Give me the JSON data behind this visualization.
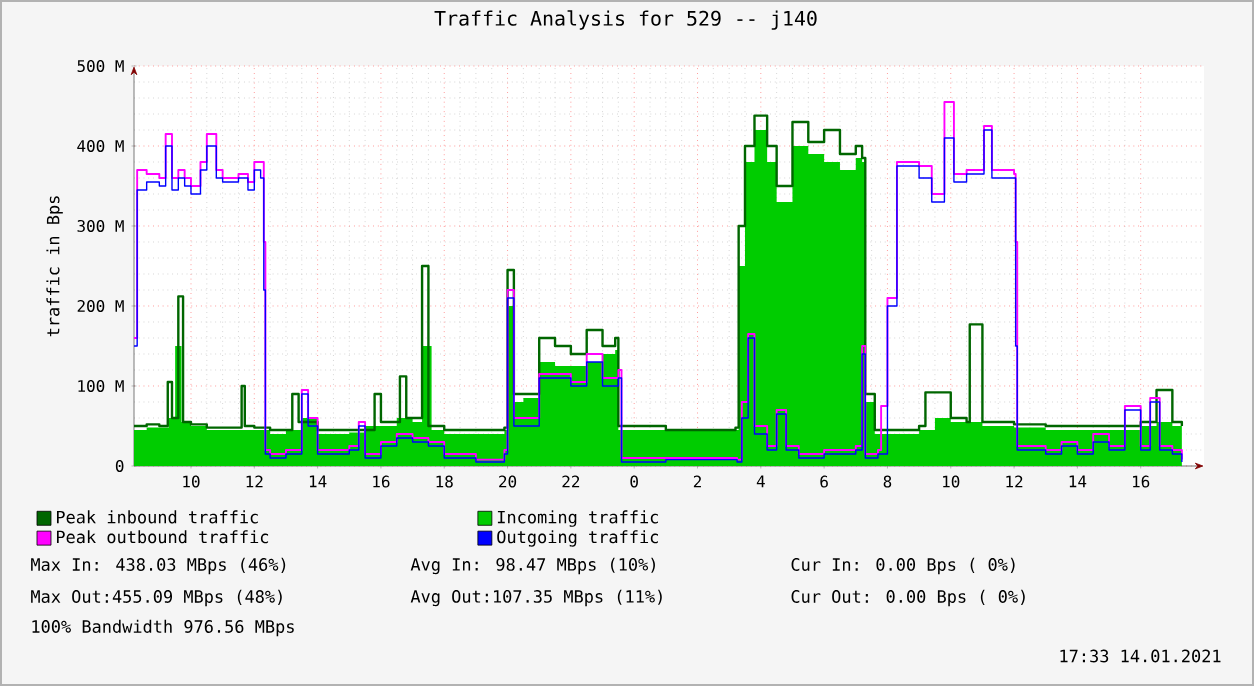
{
  "chart_data": {
    "type": "area",
    "title": "Traffic Analysis for 529 -- j140",
    "ylabel": "traffic in Bps",
    "xlim": [
      "2021-01-13T08:12",
      "2021-01-14T18:00"
    ],
    "ylim": [
      0,
      500
    ],
    "xticks": [
      {
        "value": "2021-01-13T10:00",
        "label": "10"
      },
      {
        "value": "2021-01-13T12:00",
        "label": "12"
      },
      {
        "value": "2021-01-13T14:00",
        "label": "14"
      },
      {
        "value": "2021-01-13T16:00",
        "label": "16"
      },
      {
        "value": "2021-01-13T18:00",
        "label": "18"
      },
      {
        "value": "2021-01-13T20:00",
        "label": "20"
      },
      {
        "value": "2021-01-13T22:00",
        "label": "22"
      },
      {
        "value": "2021-01-14T00:00",
        "label": "0"
      },
      {
        "value": "2021-01-14T02:00",
        "label": "2"
      },
      {
        "value": "2021-01-14T04:00",
        "label": "4"
      },
      {
        "value": "2021-01-14T06:00",
        "label": "6"
      },
      {
        "value": "2021-01-14T08:00",
        "label": "8"
      },
      {
        "value": "2021-01-14T10:00",
        "label": "10"
      },
      {
        "value": "2021-01-14T12:00",
        "label": "12"
      },
      {
        "value": "2021-01-14T14:00",
        "label": "14"
      },
      {
        "value": "2021-01-14T16:00",
        "label": "16"
      }
    ],
    "yticks": [
      0,
      {
        "value": 100,
        "label": "100 M"
      },
      {
        "value": 200,
        "label": "200 M"
      },
      {
        "value": 300,
        "label": "300 M"
      },
      {
        "value": 400,
        "label": "400 M"
      },
      {
        "value": 500,
        "label": "500 M"
      }
    ],
    "grid": true,
    "legend": "bottom",
    "series": [
      {
        "name": "Peak inbound traffic",
        "type": "step",
        "color": "#006600",
        "x": [
          "2021-01-13T08:12",
          "2021-01-13T08:36",
          "2021-01-13T09:00",
          "2021-01-13T09:16",
          "2021-01-13T09:24",
          "2021-01-13T09:36",
          "2021-01-13T09:45",
          "2021-01-13T10:00",
          "2021-01-13T10:30",
          "2021-01-13T11:00",
          "2021-01-13T11:36",
          "2021-01-13T11:42",
          "2021-01-13T12:00",
          "2021-01-13T12:30",
          "2021-01-13T13:12",
          "2021-01-13T13:24",
          "2021-01-13T14:00",
          "2021-01-13T15:00",
          "2021-01-13T15:48",
          "2021-01-13T16:00",
          "2021-01-13T16:36",
          "2021-01-13T16:48",
          "2021-01-13T17:12",
          "2021-01-13T17:18",
          "2021-01-13T17:30",
          "2021-01-13T18:00",
          "2021-01-13T19:00",
          "2021-01-13T19:54",
          "2021-01-13T20:00",
          "2021-01-13T20:12",
          "2021-01-13T21:00",
          "2021-01-13T21:30",
          "2021-01-13T22:00",
          "2021-01-13T22:30",
          "2021-01-13T23:00",
          "2021-01-13T23:24",
          "2021-01-13T23:30",
          "2021-01-14T00:00",
          "2021-01-14T01:00",
          "2021-01-14T02:00",
          "2021-01-14T03:12",
          "2021-01-14T03:18",
          "2021-01-14T03:30",
          "2021-01-14T03:48",
          "2021-01-14T04:12",
          "2021-01-14T04:30",
          "2021-01-14T05:00",
          "2021-01-14T05:30",
          "2021-01-14T06:00",
          "2021-01-14T06:30",
          "2021-01-14T07:00",
          "2021-01-14T07:12",
          "2021-01-14T07:18",
          "2021-01-14T07:36",
          "2021-01-14T08:00",
          "2021-01-14T09:00",
          "2021-01-14T09:12",
          "2021-01-14T10:00",
          "2021-01-14T10:30",
          "2021-01-14T10:36",
          "2021-01-14T11:00",
          "2021-01-14T12:00",
          "2021-01-14T13:00",
          "2021-01-14T14:00",
          "2021-01-14T15:00",
          "2021-01-14T16:00",
          "2021-01-14T16:30",
          "2021-01-14T17:00",
          "2021-01-14T17:18"
        ],
        "values": [
          50,
          52,
          50,
          105,
          60,
          212,
          55,
          52,
          48,
          48,
          100,
          50,
          48,
          45,
          90,
          55,
          45,
          45,
          90,
          55,
          112,
          60,
          60,
          250,
          50,
          45,
          45,
          48,
          245,
          90,
          160,
          150,
          140,
          170,
          150,
          160,
          50,
          50,
          45,
          45,
          48,
          300,
          400,
          438,
          400,
          350,
          430,
          405,
          420,
          390,
          400,
          385,
          90,
          45,
          45,
          50,
          92,
          60,
          55,
          177,
          55,
          52,
          50,
          50,
          50,
          55,
          95,
          55,
          50
        ]
      },
      {
        "name": "Incoming traffic",
        "color": "#00cc00",
        "x": [
          "2021-01-13T08:12",
          "2021-01-13T08:36",
          "2021-01-13T09:00",
          "2021-01-13T09:18",
          "2021-01-13T09:30",
          "2021-01-13T09:42",
          "2021-01-13T10:00",
          "2021-01-13T10:30",
          "2021-01-13T11:00",
          "2021-01-13T11:30",
          "2021-01-13T12:00",
          "2021-01-13T12:30",
          "2021-01-13T13:00",
          "2021-01-13T13:30",
          "2021-01-13T14:00",
          "2021-01-13T14:30",
          "2021-01-13T15:00",
          "2021-01-13T15:30",
          "2021-01-13T16:00",
          "2021-01-13T16:30",
          "2021-01-13T17:00",
          "2021-01-13T17:18",
          "2021-01-13T17:36",
          "2021-01-13T18:00",
          "2021-01-13T18:30",
          "2021-01-13T19:00",
          "2021-01-13T19:30",
          "2021-01-13T19:54",
          "2021-01-13T20:00",
          "2021-01-13T20:12",
          "2021-01-13T20:30",
          "2021-01-13T21:00",
          "2021-01-13T21:30",
          "2021-01-13T22:00",
          "2021-01-13T22:30",
          "2021-01-13T23:00",
          "2021-01-13T23:24",
          "2021-01-13T23:30",
          "2021-01-14T00:00",
          "2021-01-14T00:30",
          "2021-01-14T01:00",
          "2021-01-14T02:00",
          "2021-01-14T03:00",
          "2021-01-14T03:12",
          "2021-01-14T03:18",
          "2021-01-14T03:30",
          "2021-01-14T03:48",
          "2021-01-14T04:12",
          "2021-01-14T04:30",
          "2021-01-14T05:00",
          "2021-01-14T05:30",
          "2021-01-14T06:00",
          "2021-01-14T06:30",
          "2021-01-14T07:00",
          "2021-01-14T07:12",
          "2021-01-14T07:18",
          "2021-01-14T07:36",
          "2021-01-14T08:00",
          "2021-01-14T09:00",
          "2021-01-14T09:30",
          "2021-01-14T10:00",
          "2021-01-14T11:00",
          "2021-01-14T11:30",
          "2021-01-14T12:00",
          "2021-01-14T13:00",
          "2021-01-14T14:00",
          "2021-01-14T15:00",
          "2021-01-14T16:00",
          "2021-01-14T16:30",
          "2021-01-14T17:00",
          "2021-01-14T17:18"
        ],
        "values": [
          45,
          48,
          48,
          60,
          150,
          55,
          50,
          45,
          45,
          45,
          45,
          40,
          45,
          60,
          40,
          40,
          42,
          50,
          50,
          60,
          55,
          150,
          45,
          40,
          40,
          40,
          40,
          45,
          200,
          80,
          85,
          130,
          125,
          125,
          130,
          140,
          145,
          45,
          45,
          45,
          45,
          45,
          45,
          45,
          250,
          380,
          420,
          380,
          330,
          400,
          390,
          380,
          370,
          385,
          380,
          80,
          40,
          40,
          45,
          60,
          55,
          50,
          50,
          48,
          45,
          45,
          45,
          50,
          55,
          50,
          50
        ]
      },
      {
        "name": "Peak outbound traffic",
        "type": "step",
        "color": "#ff00ff",
        "x": [
          "2021-01-13T08:12",
          "2021-01-13T08:18",
          "2021-01-13T08:36",
          "2021-01-13T09:00",
          "2021-01-13T09:12",
          "2021-01-13T09:24",
          "2021-01-13T09:36",
          "2021-01-13T09:48",
          "2021-01-13T10:00",
          "2021-01-13T10:18",
          "2021-01-13T10:30",
          "2021-01-13T10:48",
          "2021-01-13T11:00",
          "2021-01-13T11:30",
          "2021-01-13T11:48",
          "2021-01-13T12:00",
          "2021-01-13T12:12",
          "2021-01-13T12:18",
          "2021-01-13T12:21",
          "2021-01-13T12:30",
          "2021-01-13T13:00",
          "2021-01-13T13:30",
          "2021-01-13T13:42",
          "2021-01-13T14:00",
          "2021-01-13T15:00",
          "2021-01-13T15:18",
          "2021-01-13T15:30",
          "2021-01-13T16:00",
          "2021-01-13T16:30",
          "2021-01-13T17:00",
          "2021-01-13T17:30",
          "2021-01-13T18:00",
          "2021-01-13T19:00",
          "2021-01-13T19:54",
          "2021-01-13T20:00",
          "2021-01-13T20:12",
          "2021-01-13T21:00",
          "2021-01-13T22:00",
          "2021-01-13T22:30",
          "2021-01-13T23:00",
          "2021-01-13T23:30",
          "2021-01-13T23:36",
          "2021-01-14T01:00",
          "2021-01-14T03:15",
          "2021-01-14T03:24",
          "2021-01-14T03:36",
          "2021-01-14T03:48",
          "2021-01-14T04:12",
          "2021-01-14T04:30",
          "2021-01-14T04:48",
          "2021-01-14T05:12",
          "2021-01-14T06:00",
          "2021-01-14T07:00",
          "2021-01-14T07:12",
          "2021-01-14T07:18",
          "2021-01-14T07:42",
          "2021-01-14T07:48",
          "2021-01-14T08:00",
          "2021-01-14T08:18",
          "2021-01-14T09:00",
          "2021-01-14T09:24",
          "2021-01-14T09:48",
          "2021-01-14T10:06",
          "2021-01-14T10:30",
          "2021-01-14T11:03",
          "2021-01-14T11:18",
          "2021-01-14T12:00",
          "2021-01-14T12:03",
          "2021-01-14T12:06",
          "2021-01-14T13:00",
          "2021-01-14T13:30",
          "2021-01-14T14:00",
          "2021-01-14T14:30",
          "2021-01-14T15:00",
          "2021-01-14T15:30",
          "2021-01-14T16:00",
          "2021-01-14T16:18",
          "2021-01-14T16:36",
          "2021-01-14T17:00",
          "2021-01-14T17:18"
        ],
        "values": [
          160,
          370,
          365,
          360,
          415,
          360,
          370,
          360,
          350,
          380,
          415,
          370,
          360,
          365,
          355,
          380,
          380,
          280,
          20,
          15,
          20,
          95,
          60,
          20,
          25,
          55,
          15,
          30,
          40,
          35,
          30,
          15,
          8,
          20,
          220,
          60,
          115,
          105,
          140,
          110,
          120,
          10,
          10,
          8,
          80,
          165,
          50,
          25,
          70,
          25,
          15,
          20,
          25,
          150,
          15,
          20,
          75,
          210,
          380,
          375,
          340,
          455,
          365,
          370,
          425,
          370,
          365,
          280,
          25,
          20,
          30,
          20,
          40,
          25,
          75,
          25,
          85,
          25,
          20,
          8
        ]
      },
      {
        "name": "Outgoing traffic",
        "type": "step",
        "color": "#0000ff",
        "x": [
          "2021-01-13T08:12",
          "2021-01-13T08:18",
          "2021-01-13T08:36",
          "2021-01-13T09:00",
          "2021-01-13T09:12",
          "2021-01-13T09:24",
          "2021-01-13T09:36",
          "2021-01-13T09:48",
          "2021-01-13T10:00",
          "2021-01-13T10:18",
          "2021-01-13T10:30",
          "2021-01-13T10:48",
          "2021-01-13T11:00",
          "2021-01-13T11:30",
          "2021-01-13T11:48",
          "2021-01-13T12:00",
          "2021-01-13T12:12",
          "2021-01-13T12:18",
          "2021-01-13T12:21",
          "2021-01-13T12:30",
          "2021-01-13T13:00",
          "2021-01-13T13:30",
          "2021-01-13T13:42",
          "2021-01-13T14:00",
          "2021-01-13T15:00",
          "2021-01-13T15:18",
          "2021-01-13T15:30",
          "2021-01-13T16:00",
          "2021-01-13T16:30",
          "2021-01-13T17:00",
          "2021-01-13T17:30",
          "2021-01-13T18:00",
          "2021-01-13T19:00",
          "2021-01-13T19:54",
          "2021-01-13T20:00",
          "2021-01-13T20:12",
          "2021-01-13T21:00",
          "2021-01-13T22:00",
          "2021-01-13T22:30",
          "2021-01-13T23:00",
          "2021-01-13T23:30",
          "2021-01-13T23:36",
          "2021-01-14T01:00",
          "2021-01-14T03:15",
          "2021-01-14T03:24",
          "2021-01-14T03:36",
          "2021-01-14T03:48",
          "2021-01-14T04:12",
          "2021-01-14T04:30",
          "2021-01-14T04:48",
          "2021-01-14T05:12",
          "2021-01-14T06:00",
          "2021-01-14T07:00",
          "2021-01-14T07:12",
          "2021-01-14T07:18",
          "2021-01-14T07:42",
          "2021-01-14T08:00",
          "2021-01-14T08:18",
          "2021-01-14T09:00",
          "2021-01-14T09:24",
          "2021-01-14T09:48",
          "2021-01-14T10:06",
          "2021-01-14T10:30",
          "2021-01-14T11:03",
          "2021-01-14T11:18",
          "2021-01-14T12:00",
          "2021-01-14T12:03",
          "2021-01-14T12:06",
          "2021-01-14T13:00",
          "2021-01-14T13:30",
          "2021-01-14T14:00",
          "2021-01-14T14:30",
          "2021-01-14T15:00",
          "2021-01-14T15:30",
          "2021-01-14T16:00",
          "2021-01-14T16:18",
          "2021-01-14T16:36",
          "2021-01-14T17:00",
          "2021-01-14T17:18"
        ],
        "values": [
          150,
          345,
          355,
          350,
          400,
          345,
          360,
          350,
          340,
          370,
          400,
          360,
          355,
          360,
          345,
          370,
          360,
          220,
          15,
          10,
          15,
          90,
          50,
          15,
          20,
          50,
          10,
          25,
          35,
          30,
          25,
          10,
          5,
          15,
          210,
          50,
          110,
          100,
          130,
          100,
          110,
          5,
          8,
          5,
          60,
          160,
          40,
          20,
          65,
          20,
          10,
          15,
          20,
          140,
          10,
          15,
          200,
          375,
          360,
          330,
          410,
          355,
          365,
          420,
          360,
          360,
          150,
          20,
          15,
          25,
          15,
          30,
          20,
          70,
          20,
          80,
          20,
          15,
          5
        ]
      }
    ],
    "annotations": [
      "Max In: 438.03 MBps (46%)",
      "Avg In: 98.47 MBps (10%)",
      "Cur In: 0.00 Bps ( 0%)",
      "Max Out:455.09 MBps (48%)",
      "Avg Out:107.35 MBps (11%)",
      "Cur Out: 0.00 Bps ( 0%)",
      "100% Bandwidth 976.56 MBps",
      "17:33 14.01.2021"
    ]
  }
}
